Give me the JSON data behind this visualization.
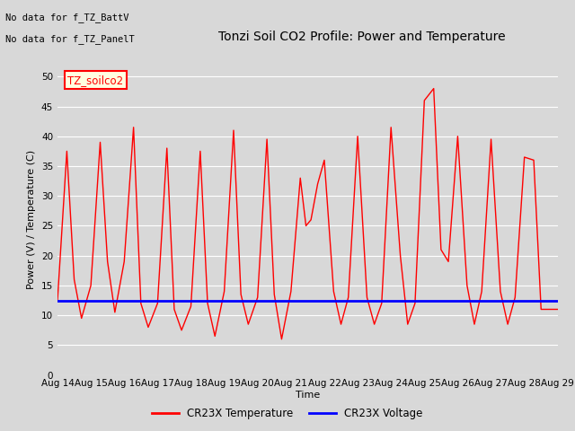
{
  "title": "Tonzi Soil CO2 Profile: Power and Temperature",
  "ylabel": "Power (V) / Temperature (C)",
  "xlabel": "Time",
  "no_data_text": [
    "No data for f_TZ_BattV",
    "No data for f_TZ_PanelT"
  ],
  "legend_label_box": "TZ_soilco2",
  "legend_line1": "CR23X Temperature",
  "legend_line2": "CR23X Voltage",
  "ylim": [
    0,
    52
  ],
  "yticks": [
    0,
    5,
    10,
    15,
    20,
    25,
    30,
    35,
    40,
    45,
    50
  ],
  "x_labels": [
    "Aug 14",
    "Aug 15",
    "Aug 16",
    "Aug 17",
    "Aug 18",
    "Aug 19",
    "Aug 20",
    "Aug 21",
    "Aug 22",
    "Aug 23",
    "Aug 24",
    "Aug 25",
    "Aug 26",
    "Aug 27",
    "Aug 28",
    "Aug 29"
  ],
  "voltage_value": 12.5,
  "temp_color": "#ff0000",
  "voltage_color": "#0000ff",
  "bg_color": "#d8d8d8",
  "plot_bg_color": "#d8d8d8",
  "grid_color": "#ffffff",
  "temp_data_x": [
    0,
    0.28,
    0.5,
    0.72,
    1.0,
    1.28,
    1.5,
    1.72,
    2.0,
    2.28,
    2.5,
    2.72,
    3.0,
    3.28,
    3.5,
    3.72,
    4.0,
    4.28,
    4.5,
    4.72,
    5.0,
    5.28,
    5.5,
    5.72,
    6.0,
    6.28,
    6.5,
    6.72,
    7.0,
    7.28,
    7.45,
    7.6,
    7.8,
    8.0,
    8.28,
    8.5,
    8.72,
    9.0,
    9.28,
    9.5,
    9.72,
    10.0,
    10.28,
    10.5,
    10.72,
    11.0,
    11.28,
    11.5,
    11.72,
    12.0,
    12.28,
    12.5,
    12.72,
    13.0,
    13.28,
    13.5,
    13.72,
    14.0,
    14.28,
    14.5,
    14.72,
    15.0
  ],
  "temp_data_y": [
    12.5,
    37.5,
    16,
    9.5,
    15,
    39,
    19,
    10.5,
    19,
    41.5,
    12,
    8,
    12,
    38,
    11,
    7.5,
    11.5,
    37.5,
    12,
    6.5,
    14,
    41,
    13.5,
    8.5,
    13,
    39.5,
    13.5,
    6,
    14,
    33,
    25,
    26,
    32,
    36,
    14,
    8.5,
    13,
    40,
    13,
    8.5,
    12,
    41.5,
    20,
    8.5,
    12,
    46,
    48,
    21,
    19,
    40,
    15,
    8.5,
    14,
    39.5,
    14,
    8.5,
    13,
    36.5,
    36,
    11,
    11,
    11
  ]
}
